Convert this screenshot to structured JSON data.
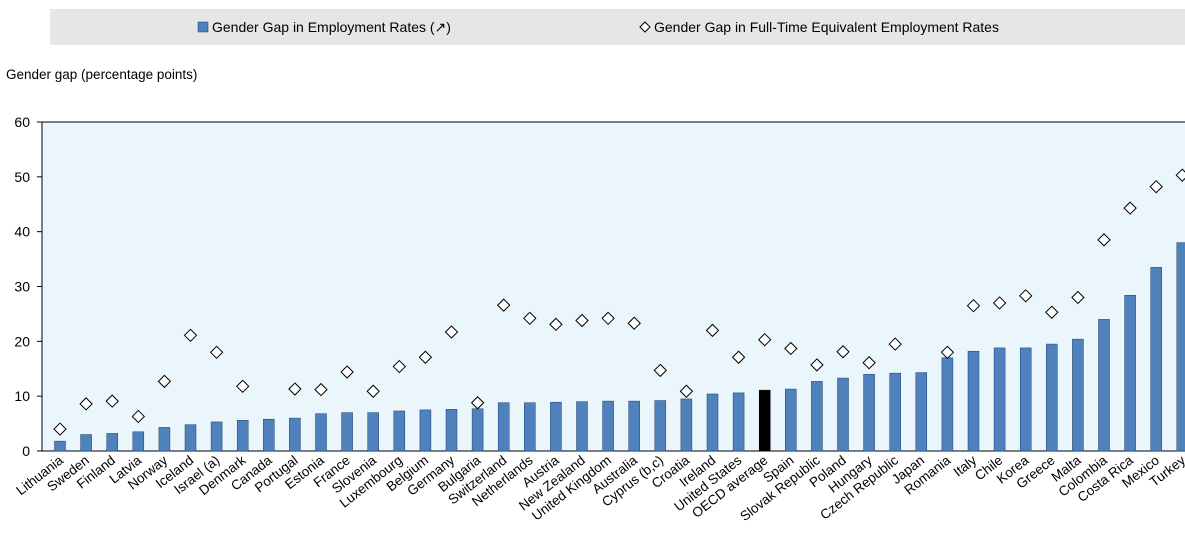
{
  "chart_data": {
    "type": "bar",
    "y_label": "Gender  gap (percentage points)",
    "categories": [
      "Lithuania",
      "Sweden",
      "Finland",
      "Latvia",
      "Norway",
      "Iceland",
      "Israel (a)",
      "Denmark",
      "Canada",
      "Portugal",
      "Estonia",
      "France",
      "Slovenia",
      "Luxembourg",
      "Belgium",
      "Germany",
      "Bulgaria",
      "Switzerland",
      "Netherlands",
      "Austria",
      "New Zealand",
      "United Kingdom",
      "Australia",
      "Cyprus (b,c)",
      "Croatia",
      "Ireland",
      "United States",
      "OECD average",
      "Spain",
      "Slovak Republic",
      "Poland",
      "Hungary",
      "Czech Republic",
      "Japan",
      "Romania",
      "Italy",
      "Chile",
      "Korea",
      "Greece",
      "Malta",
      "Colombia",
      "Costa Rica",
      "Mexico",
      "Turkey"
    ],
    "series": [
      {
        "name": "Gender Gap in Employment Rates (↗)",
        "color": "#4f81bd",
        "marker": "bar",
        "highlight": {
          "category": "OECD average",
          "color": "#000000"
        },
        "values": [
          1.8,
          3,
          3.2,
          3.5,
          4.3,
          4.8,
          5.3,
          5.6,
          5.8,
          6,
          6.8,
          7,
          7,
          7.3,
          7.5,
          7.6,
          7.7,
          8.8,
          8.8,
          8.9,
          9,
          9.1,
          9.1,
          9.2,
          9.5,
          10.4,
          10.6,
          11.1,
          11.3,
          12.7,
          13.3,
          14,
          14.2,
          14.3,
          17,
          18.2,
          18.8,
          18.8,
          19.5,
          20.4,
          24,
          28.4,
          33.5,
          38
        ]
      },
      {
        "name": "Gender Gap in Full-Time Equivalent Employment Rates",
        "color": "#000000",
        "marker": "diamond",
        "values": [
          4,
          8.6,
          9.1,
          6.3,
          12.7,
          21.1,
          18,
          11.8,
          null,
          11.3,
          11.2,
          14.4,
          10.9,
          15.4,
          17.1,
          21.7,
          8.8,
          26.6,
          24.2,
          23.1,
          23.8,
          24.2,
          23.3,
          14.7,
          10.9,
          22,
          17.1,
          20.3,
          18.7,
          15.7,
          18.1,
          16.1,
          19.5,
          null,
          18,
          26.5,
          27,
          28.3,
          25.3,
          28,
          38.5,
          44.3,
          48.2,
          50.3
        ]
      }
    ],
    "ylim": [
      0,
      60
    ],
    "yticks": [
      0,
      10,
      20,
      30,
      40,
      50,
      60
    ],
    "legend_position": "top",
    "plot_background": "#eaf6fb"
  }
}
